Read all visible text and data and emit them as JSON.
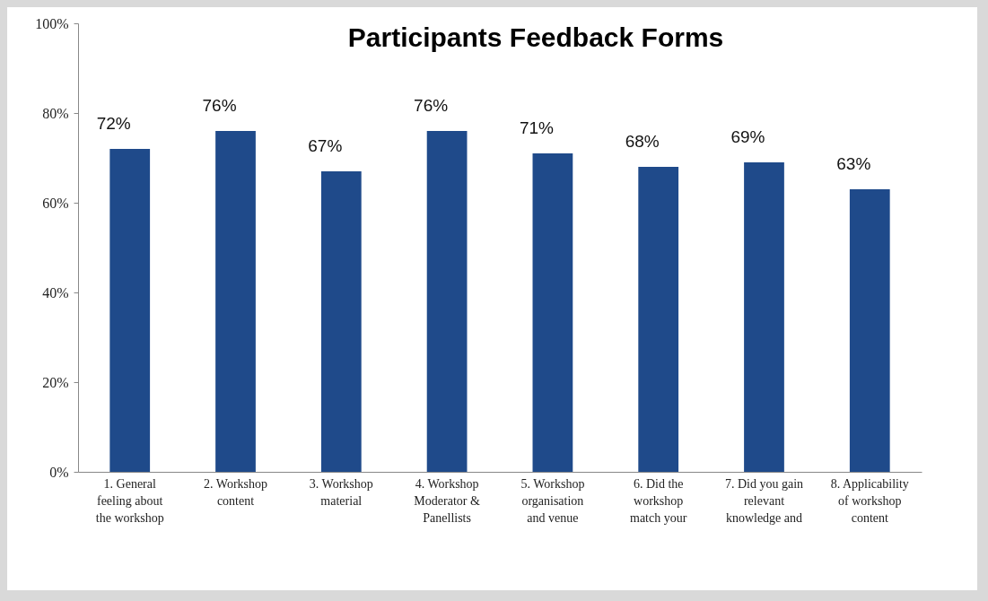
{
  "chart_data": {
    "type": "bar",
    "title": "Participants Feedback Forms",
    "categories": [
      "1. General\nfeeling about\nthe workshop",
      "2. Workshop\ncontent",
      "3. Workshop\nmaterial",
      "4. Workshop\nModerator &\nPanellists",
      "5. Workshop\norganisation\nand venue",
      "6. Did the\nworkshop\nmatch your",
      "7. Did you gain\nrelevant\nknowledge and",
      "8. Applicability\nof workshop\ncontent"
    ],
    "values": [
      72,
      76,
      67,
      76,
      71,
      68,
      69,
      63
    ],
    "value_labels": [
      "72%",
      "76%",
      "67%",
      "76%",
      "71%",
      "68%",
      "69%",
      "63%"
    ],
    "color": "#1f4a8a",
    "ylim": [
      0,
      100
    ],
    "yticks": [
      {
        "value": 0,
        "label": "0%"
      },
      {
        "value": 20,
        "label": "20%"
      },
      {
        "value": 40,
        "label": "40%"
      },
      {
        "value": 60,
        "label": "60%"
      },
      {
        "value": 80,
        "label": "80%"
      },
      {
        "value": 100,
        "label": "100%"
      }
    ],
    "grid": false
  }
}
